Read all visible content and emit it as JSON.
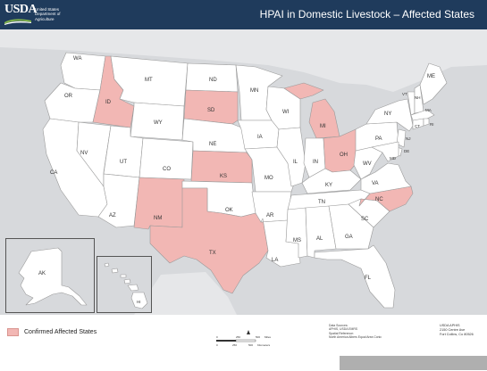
{
  "header": {
    "logo_text": "USDA",
    "logo_subtitle_lines": [
      "United States",
      "Department of",
      "Agriculture"
    ],
    "title": "HPAI in Domestic Livestock – Affected States"
  },
  "colors": {
    "header_bg": "#1f3b5c",
    "map_water": "#d7d9dc",
    "state_fill": "#ffffff",
    "affected_fill": "#f2b7b4",
    "state_border": "#9a9a9a"
  },
  "states": [
    {
      "abbr": "WA",
      "affected": false
    },
    {
      "abbr": "OR",
      "affected": false
    },
    {
      "abbr": "CA",
      "affected": false
    },
    {
      "abbr": "ID",
      "affected": true
    },
    {
      "abbr": "NV",
      "affected": false
    },
    {
      "abbr": "MT",
      "affected": false
    },
    {
      "abbr": "WY",
      "affected": false
    },
    {
      "abbr": "UT",
      "affected": false
    },
    {
      "abbr": "AZ",
      "affected": false
    },
    {
      "abbr": "CO",
      "affected": false
    },
    {
      "abbr": "NM",
      "affected": true
    },
    {
      "abbr": "ND",
      "affected": false
    },
    {
      "abbr": "SD",
      "affected": true
    },
    {
      "abbr": "NE",
      "affected": false
    },
    {
      "abbr": "KS",
      "affected": true
    },
    {
      "abbr": "OK",
      "affected": false
    },
    {
      "abbr": "TX",
      "affected": true
    },
    {
      "abbr": "MN",
      "affected": false
    },
    {
      "abbr": "IA",
      "affected": false
    },
    {
      "abbr": "MO",
      "affected": false
    },
    {
      "abbr": "AR",
      "affected": false
    },
    {
      "abbr": "LA",
      "affected": false
    },
    {
      "abbr": "WI",
      "affected": false
    },
    {
      "abbr": "IL",
      "affected": false
    },
    {
      "abbr": "MI",
      "affected": true
    },
    {
      "abbr": "IN",
      "affected": false
    },
    {
      "abbr": "OH",
      "affected": true
    },
    {
      "abbr": "KY",
      "affected": false
    },
    {
      "abbr": "TN",
      "affected": false
    },
    {
      "abbr": "MS",
      "affected": false
    },
    {
      "abbr": "AL",
      "affected": false
    },
    {
      "abbr": "GA",
      "affected": false
    },
    {
      "abbr": "FL",
      "affected": false
    },
    {
      "abbr": "SC",
      "affected": false
    },
    {
      "abbr": "NC",
      "affected": true
    },
    {
      "abbr": "VA",
      "affected": false
    },
    {
      "abbr": "WV",
      "affected": false
    },
    {
      "abbr": "PA",
      "affected": false
    },
    {
      "abbr": "NY",
      "affected": false
    },
    {
      "abbr": "VT",
      "affected": false
    },
    {
      "abbr": "NH",
      "affected": false
    },
    {
      "abbr": "ME",
      "affected": false
    },
    {
      "abbr": "MA",
      "affected": false
    },
    {
      "abbr": "CT",
      "affected": false
    },
    {
      "abbr": "RI",
      "affected": false
    },
    {
      "abbr": "NJ",
      "affected": false
    },
    {
      "abbr": "DE",
      "affected": false
    },
    {
      "abbr": "MD",
      "affected": false
    },
    {
      "abbr": "AK",
      "affected": false
    },
    {
      "abbr": "HI",
      "affected": false
    }
  ],
  "legend": {
    "label": "Confirmed Affected States"
  },
  "scale": {
    "tick_top": [
      "0",
      "250",
      "500"
    ],
    "units_top": "Miles",
    "tick_bottom": [
      "0",
      "250",
      "500"
    ],
    "units_bottom": "Kilometers"
  },
  "credits": {
    "lines": [
      "Data Sources:",
      "APHIS, USDA EMRS",
      "Spatial Reference:",
      "North America Albers Equal Area Conic"
    ]
  },
  "address": {
    "lines": [
      "USDA APHIS",
      "2150 Centre Ave",
      "Fort Collins, Co 80526"
    ]
  }
}
